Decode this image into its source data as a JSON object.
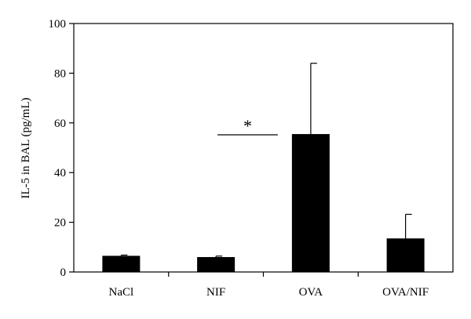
{
  "chart_data": {
    "type": "bar",
    "ylabel": "IL-5 in BAL (pg/mL)",
    "xlabel": "",
    "title": "",
    "categories": [
      "NaCl",
      "NIF",
      "OVA",
      "OVA/NIF"
    ],
    "values": [
      6.5,
      6.0,
      55.5,
      13.5
    ],
    "error_upper": [
      0.3,
      0.4,
      28.5,
      9.7
    ],
    "ylim": [
      0,
      100
    ],
    "yticks": [
      0,
      20,
      40,
      60,
      80,
      100
    ],
    "grid": false,
    "legend": "none",
    "bar_color": "#000000",
    "significance": {
      "symbol": "*",
      "between": [
        "NIF",
        "OVA"
      ]
    }
  }
}
